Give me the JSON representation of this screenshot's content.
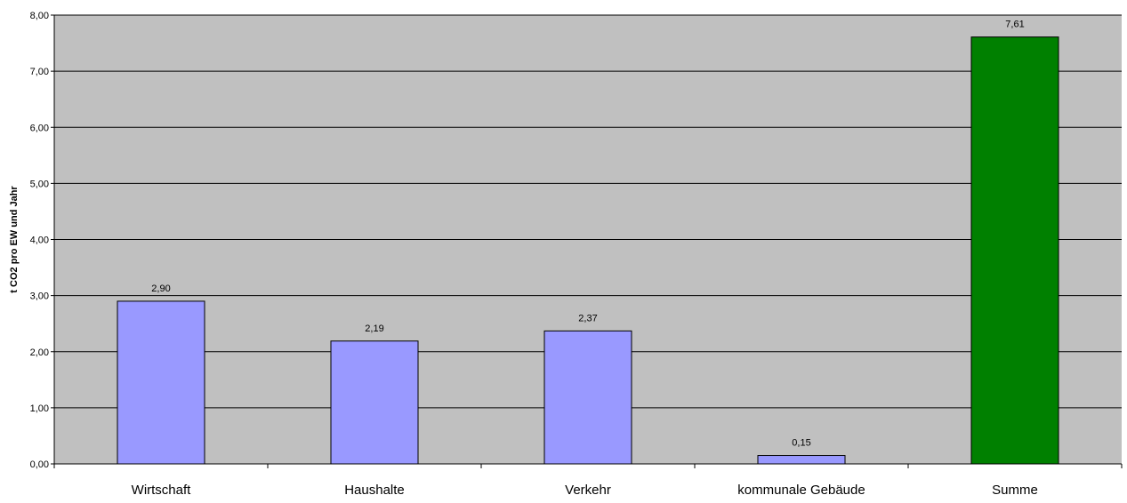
{
  "chart_data": {
    "type": "bar",
    "categories": [
      "Wirtschaft",
      "Haushalte",
      "Verkehr",
      "kommunale Gebäude",
      "Summe"
    ],
    "values": [
      2.9,
      2.19,
      2.37,
      0.15,
      7.61
    ],
    "value_labels": [
      "2,90",
      "2,19",
      "2,37",
      "0,15",
      "7,61"
    ],
    "bar_colors": [
      "#9999ff",
      "#9999ff",
      "#9999ff",
      "#9999ff",
      "#008000"
    ],
    "title": "",
    "xlabel": "",
    "ylabel": "t CO2 pro EW und Jahr",
    "ylim": [
      0,
      8
    ],
    "yticks": [
      0,
      1,
      2,
      3,
      4,
      5,
      6,
      7,
      8
    ],
    "ytick_labels": [
      "0,00",
      "1,00",
      "2,00",
      "3,00",
      "4,00",
      "5,00",
      "6,00",
      "7,00",
      "8,00"
    ],
    "grid": true,
    "plot_background": "#c0c0c0",
    "legend": "none"
  }
}
